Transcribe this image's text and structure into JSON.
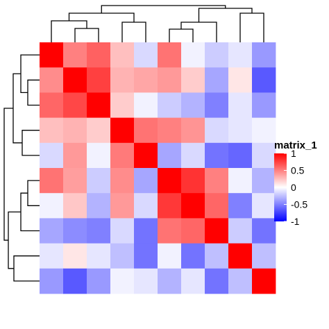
{
  "chart_data": {
    "type": "heatmap",
    "rows": 10,
    "cols": 10,
    "values": [
      [
        1.0,
        0.5,
        0.62,
        0.25,
        -0.15,
        0.55,
        -0.05,
        -0.2,
        -0.1,
        -0.4
      ],
      [
        0.45,
        1.0,
        0.75,
        0.3,
        0.35,
        0.4,
        0.2,
        -0.35,
        0.1,
        -0.65
      ],
      [
        0.6,
        0.72,
        1.0,
        0.2,
        -0.05,
        -0.2,
        -0.3,
        -0.5,
        -0.1,
        -0.4
      ],
      [
        0.25,
        0.3,
        0.2,
        1.0,
        0.55,
        0.5,
        0.42,
        -0.15,
        -0.1,
        -0.05
      ],
      [
        -0.15,
        0.4,
        -0.05,
        0.52,
        1.0,
        -0.35,
        -0.15,
        -0.55,
        -0.6,
        -0.15
      ],
      [
        0.55,
        0.38,
        -0.2,
        0.45,
        -0.35,
        1.0,
        0.8,
        0.5,
        -0.05,
        -0.3
      ],
      [
        -0.05,
        0.22,
        -0.3,
        0.4,
        -0.15,
        0.78,
        1.0,
        0.6,
        -0.5,
        -0.1
      ],
      [
        -0.35,
        -0.45,
        -0.5,
        -0.15,
        -0.55,
        0.55,
        0.6,
        1.0,
        -0.2,
        -0.55
      ],
      [
        -0.1,
        0.1,
        -0.1,
        -0.25,
        -0.55,
        -0.05,
        -0.55,
        -0.25,
        1.0,
        -0.25
      ],
      [
        -0.4,
        -0.65,
        -0.4,
        -0.05,
        -0.1,
        -0.3,
        -0.1,
        -0.55,
        -0.25,
        1.0
      ]
    ],
    "color_scale": {
      "low": "#0000ff",
      "mid": "#ffffff",
      "high": "#ff0000",
      "domain": [
        -1,
        0,
        1
      ]
    },
    "legend": {
      "title": "matrix_1",
      "ticks": [
        {
          "value": 1,
          "label": "1"
        },
        {
          "value": 0.5,
          "label": "0.5"
        },
        {
          "value": 0,
          "label": "0"
        },
        {
          "value": -0.5,
          "label": "-0.5"
        },
        {
          "value": -1,
          "label": "-1"
        }
      ],
      "placement": "right"
    },
    "row_dendrogram": true,
    "column_dendrogram": true,
    "grid": false
  }
}
